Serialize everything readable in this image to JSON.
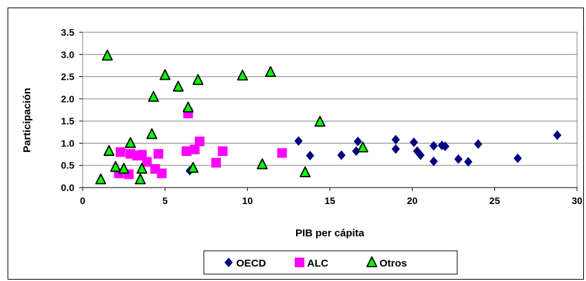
{
  "chart_data": {
    "type": "scatter",
    "xlabel": "PIB per cápita",
    "ylabel": "Participación",
    "xlim": [
      0,
      30
    ],
    "ylim": [
      0.0,
      3.5
    ],
    "x_ticks": [
      "0",
      "5",
      "10",
      "15",
      "20",
      "25",
      "30"
    ],
    "y_ticks": [
      "0.0",
      "0.5",
      "1.0",
      "1.5",
      "2.0",
      "2.5",
      "3.0",
      "3.5"
    ],
    "grid": "horizontal",
    "legend_position": "bottom",
    "series": [
      {
        "name": "OECD",
        "marker": "diamond",
        "color": "#000080",
        "points": [
          [
            6.5,
            0.38
          ],
          [
            13.1,
            1.05
          ],
          [
            13.8,
            0.72
          ],
          [
            15.7,
            0.73
          ],
          [
            16.6,
            0.82
          ],
          [
            16.7,
            1.04
          ],
          [
            19.0,
            1.08
          ],
          [
            19.0,
            0.87
          ],
          [
            20.1,
            1.02
          ],
          [
            20.3,
            0.82
          ],
          [
            20.5,
            0.73
          ],
          [
            21.3,
            0.94
          ],
          [
            21.3,
            0.59
          ],
          [
            21.8,
            0.95
          ],
          [
            22.0,
            0.93
          ],
          [
            22.8,
            0.64
          ],
          [
            23.4,
            0.58
          ],
          [
            24.0,
            0.98
          ],
          [
            26.4,
            0.66
          ],
          [
            28.8,
            1.18
          ]
        ]
      },
      {
        "name": "ALC",
        "marker": "square",
        "color": "#FF00FF",
        "points": [
          [
            2.2,
            0.32
          ],
          [
            2.3,
            0.8
          ],
          [
            2.8,
            0.3
          ],
          [
            2.9,
            0.76
          ],
          [
            3.3,
            0.72
          ],
          [
            3.6,
            0.74
          ],
          [
            3.9,
            0.58
          ],
          [
            4.4,
            0.42
          ],
          [
            4.6,
            0.76
          ],
          [
            4.8,
            0.32
          ],
          [
            6.3,
            0.82
          ],
          [
            6.4,
            1.67
          ],
          [
            6.8,
            0.86
          ],
          [
            7.1,
            1.04
          ],
          [
            8.1,
            0.56
          ],
          [
            8.5,
            0.82
          ],
          [
            12.1,
            0.78
          ]
        ]
      },
      {
        "name": "Otros",
        "marker": "triangle",
        "color": "#00FF00",
        "points": [
          [
            1.1,
            0.18
          ],
          [
            1.5,
            2.97
          ],
          [
            1.6,
            0.82
          ],
          [
            2.0,
            0.46
          ],
          [
            2.5,
            0.42
          ],
          [
            2.9,
            1.0
          ],
          [
            3.5,
            0.18
          ],
          [
            3.6,
            0.42
          ],
          [
            4.2,
            1.2
          ],
          [
            4.3,
            2.04
          ],
          [
            5.0,
            2.53
          ],
          [
            5.8,
            2.27
          ],
          [
            6.4,
            1.8
          ],
          [
            6.7,
            0.44
          ],
          [
            7.0,
            2.42
          ],
          [
            9.7,
            2.52
          ],
          [
            10.9,
            0.52
          ],
          [
            11.4,
            2.6
          ],
          [
            13.5,
            0.34
          ],
          [
            14.4,
            1.48
          ],
          [
            17.0,
            0.9
          ]
        ]
      }
    ]
  }
}
